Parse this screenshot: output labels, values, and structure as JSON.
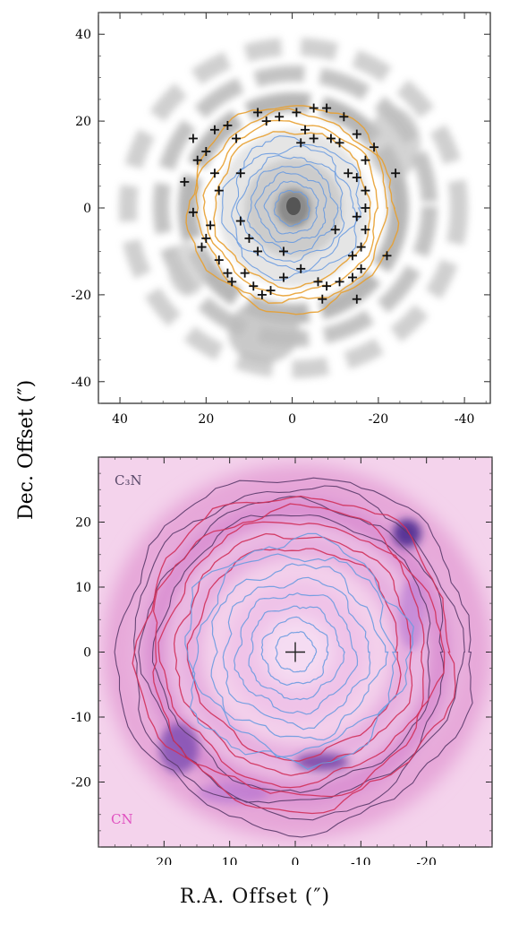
{
  "figure": {
    "shared_ylabel": "Dec. Offset (″)",
    "shared_xlabel": "R.A. Offset (″)"
  },
  "chart_data": [
    {
      "type": "scatter",
      "panel": "top",
      "x_ticks": [
        40,
        20,
        0,
        -20,
        -40
      ],
      "y_ticks": [
        40,
        20,
        0,
        -20,
        -40
      ],
      "xlim": [
        45,
        -46
      ],
      "ylim": [
        -45,
        45
      ],
      "background": "grayscale emission map",
      "contour_colors": [
        "#e8a030",
        "#6a9be0"
      ],
      "marker": "plus",
      "marker_color": "#111111",
      "points": [
        [
          8,
          22
        ],
        [
          3,
          21
        ],
        [
          -1,
          22
        ],
        [
          -5,
          23
        ],
        [
          -8,
          23
        ],
        [
          -12,
          21
        ],
        [
          -15,
          17
        ],
        [
          -19,
          14
        ],
        [
          -24,
          8
        ],
        [
          15,
          19
        ],
        [
          18,
          18
        ],
        [
          20,
          13
        ],
        [
          22,
          11
        ],
        [
          23,
          16
        ],
        [
          25,
          6
        ],
        [
          23,
          -1
        ],
        [
          20,
          -7
        ],
        [
          21,
          -9
        ],
        [
          19,
          -4
        ],
        [
          17,
          -12
        ],
        [
          15,
          -15
        ],
        [
          14,
          -17
        ],
        [
          11,
          -15
        ],
        [
          9,
          -18
        ],
        [
          7,
          -20
        ],
        [
          5,
          -19
        ],
        [
          2,
          -16
        ],
        [
          -2,
          -14
        ],
        [
          -6,
          -17
        ],
        [
          -8,
          -18
        ],
        [
          -11,
          -17
        ],
        [
          -14,
          -16
        ],
        [
          -16,
          -14
        ],
        [
          -14,
          -11
        ],
        [
          -16,
          -9
        ],
        [
          -17,
          -5
        ],
        [
          -15,
          -2
        ],
        [
          -17,
          0
        ],
        [
          -17,
          4
        ],
        [
          -15,
          7
        ],
        [
          -13,
          8
        ],
        [
          -17,
          11
        ],
        [
          -11,
          15
        ],
        [
          -9,
          16
        ],
        [
          -5,
          16
        ],
        [
          -2,
          15
        ],
        [
          -22,
          -11
        ],
        [
          -15,
          -21
        ],
        [
          -7,
          -21
        ],
        [
          13,
          16
        ],
        [
          12,
          8
        ],
        [
          10,
          -7
        ],
        [
          8,
          -10
        ],
        [
          12,
          -3
        ],
        [
          17,
          4
        ],
        [
          18,
          8
        ],
        [
          6,
          20
        ],
        [
          -3,
          18
        ],
        [
          2,
          -10
        ],
        [
          -10,
          -5
        ]
      ]
    },
    {
      "type": "scatter",
      "panel": "bottom",
      "x_ticks": [
        20,
        10,
        0,
        -10,
        -20
      ],
      "y_ticks": [
        20,
        10,
        0,
        -10,
        -20
      ],
      "xlim": [
        30,
        -30
      ],
      "ylim": [
        -30,
        30
      ],
      "background": "magenta CN emission map",
      "contour_colors": [
        "#5a3a6a",
        "#d0305a",
        "#6a9be0"
      ],
      "marker": "plus",
      "marker_color": "#222222",
      "points": [
        [
          0,
          0
        ]
      ],
      "annotations": [
        {
          "text": "C₃N",
          "color": "#5a4a6a"
        },
        {
          "text": "CN",
          "color": "#e050c0"
        }
      ]
    }
  ]
}
